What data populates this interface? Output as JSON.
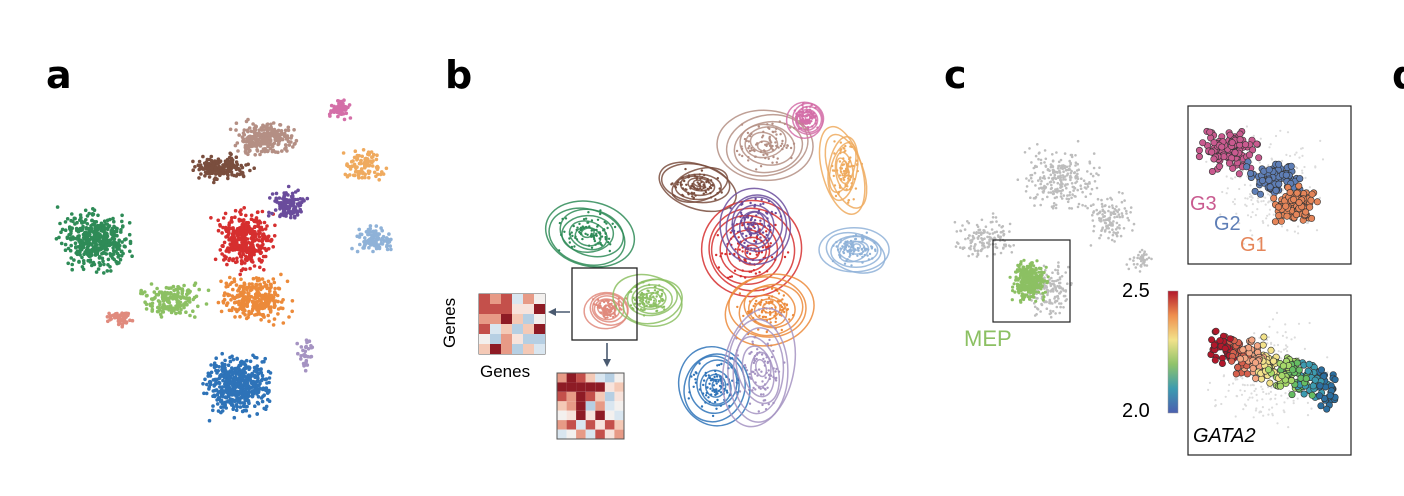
{
  "panels": {
    "a": {
      "letter": "a"
    },
    "b": {
      "letter": "b",
      "genes_y": "Genes",
      "genes_x": "Genes"
    },
    "c": {
      "letter": "c",
      "mep_label": "MEP",
      "g3": "G3",
      "g2": "G2",
      "g1": "G1",
      "colorbar_max": "2.5",
      "colorbar_min": "2.0",
      "gene": "GATA2"
    },
    "d": {
      "letter": "d"
    }
  },
  "colors": {
    "green_dark": "#2e8b57",
    "green_light": "#8cc063",
    "salmon": "#e08a7d",
    "brown": "#7a4e3e",
    "tan": "#b48f84",
    "pink": "#d46fa8",
    "red": "#d62f2f",
    "purple": "#6a4c9c",
    "orange": "#ec8a3a",
    "peach": "#efaa5e",
    "lightblue": "#8fb2d8",
    "blue": "#2e73b8",
    "lavender": "#a593c2",
    "grey": "#bdbdbd",
    "mep_green": "#8cc063",
    "g1": "#e58559",
    "g2": "#5e7eb6",
    "g3": "#c95a8f"
  }
}
